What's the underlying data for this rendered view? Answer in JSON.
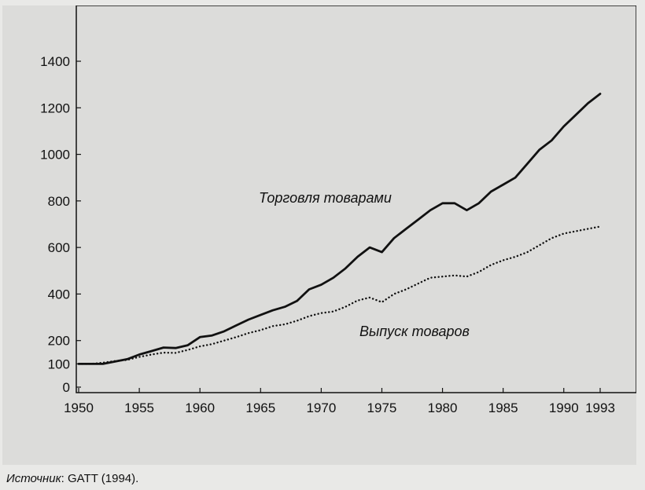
{
  "chart_data": {
    "type": "line",
    "xlim": [
      1950,
      1993
    ],
    "ylim": [
      0,
      1400
    ],
    "x_ticks": [
      1950,
      1955,
      1960,
      1965,
      1970,
      1975,
      1980,
      1985,
      1990,
      1993
    ],
    "y_ticks": [
      0,
      100,
      200,
      400,
      600,
      800,
      1000,
      1200,
      1400
    ],
    "x_tick_labels": [
      "1950",
      "1955",
      "1960",
      "1965",
      "1970",
      "1975",
      "1980",
      "1985",
      "1990",
      "1993"
    ],
    "y_tick_labels": [
      "0",
      "100",
      "200",
      "400",
      "600",
      "800",
      "1000",
      "1200",
      "1400"
    ],
    "grid": false,
    "series": [
      {
        "name": "Торговля товарами",
        "style": "solid",
        "x": [
          1950,
          1951,
          1952,
          1953,
          1954,
          1955,
          1956,
          1957,
          1958,
          1959,
          1960,
          1961,
          1962,
          1963,
          1964,
          1965,
          1966,
          1967,
          1968,
          1969,
          1970,
          1971,
          1972,
          1973,
          1974,
          1975,
          1976,
          1977,
          1978,
          1979,
          1980,
          1981,
          1982,
          1983,
          1984,
          1985,
          1986,
          1987,
          1988,
          1989,
          1990,
          1991,
          1992,
          1993
        ],
        "values": [
          100,
          100,
          100,
          110,
          120,
          140,
          155,
          170,
          168,
          180,
          215,
          222,
          240,
          265,
          290,
          310,
          330,
          345,
          370,
          420,
          440,
          470,
          510,
          560,
          600,
          580,
          640,
          680,
          720,
          760,
          790,
          790,
          760,
          790,
          840,
          870,
          900,
          960,
          1020,
          1060,
          1120,
          1170,
          1220,
          1260
        ]
      },
      {
        "name": "Выпуск товаров",
        "style": "dotted",
        "x": [
          1950,
          1951,
          1952,
          1953,
          1954,
          1955,
          1956,
          1957,
          1958,
          1959,
          1960,
          1961,
          1962,
          1963,
          1964,
          1965,
          1966,
          1967,
          1968,
          1969,
          1970,
          1971,
          1972,
          1973,
          1974,
          1975,
          1976,
          1977,
          1978,
          1979,
          1980,
          1981,
          1982,
          1983,
          1984,
          1985,
          1986,
          1987,
          1988,
          1989,
          1990,
          1991,
          1992,
          1993
        ],
        "values": [
          100,
          100,
          105,
          112,
          117,
          130,
          140,
          148,
          147,
          160,
          175,
          185,
          200,
          215,
          232,
          245,
          262,
          270,
          285,
          305,
          318,
          325,
          345,
          372,
          385,
          365,
          400,
          420,
          445,
          470,
          475,
          480,
          475,
          495,
          525,
          545,
          560,
          580,
          610,
          640,
          660,
          670,
          680,
          690
        ]
      }
    ]
  },
  "labels": {
    "trade": "Торговля товарами",
    "output": "Выпуск товаров"
  },
  "source": {
    "label": "Источник",
    "text": ": GATT (1994)."
  }
}
